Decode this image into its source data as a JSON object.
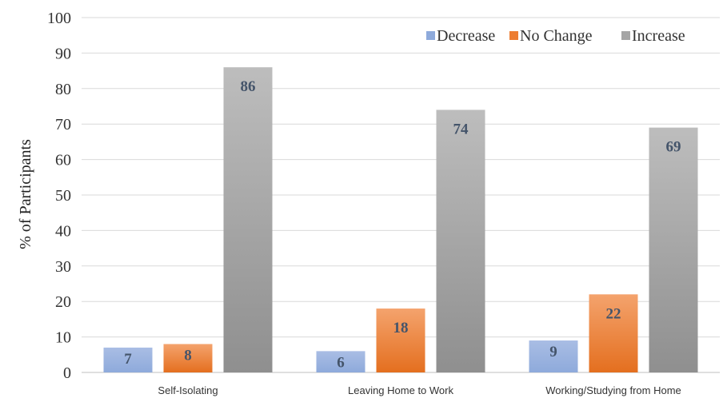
{
  "colors": {
    "decrease": "#8eaadb",
    "no_change": "#ed7d31",
    "increase": "#a5a5a5"
  },
  "chart_data": {
    "type": "bar",
    "title": "",
    "xlabel": "",
    "ylabel": "% of Participants",
    "ylim": [
      0,
      100
    ],
    "yticks": [
      0,
      10,
      20,
      30,
      40,
      50,
      60,
      70,
      80,
      90,
      100
    ],
    "grid": true,
    "legend_position": "top-right",
    "categories": [
      "Self-Isolating",
      "Leaving Home to Work",
      "Working/Studying from Home"
    ],
    "series": [
      {
        "name": "Decrease",
        "color_key": "decrease",
        "values": [
          7,
          6,
          9
        ]
      },
      {
        "name": "No Change",
        "color_key": "no_change",
        "values": [
          8,
          18,
          22
        ]
      },
      {
        "name": "Increase",
        "color_key": "increase",
        "values": [
          86,
          74,
          69
        ]
      }
    ]
  }
}
